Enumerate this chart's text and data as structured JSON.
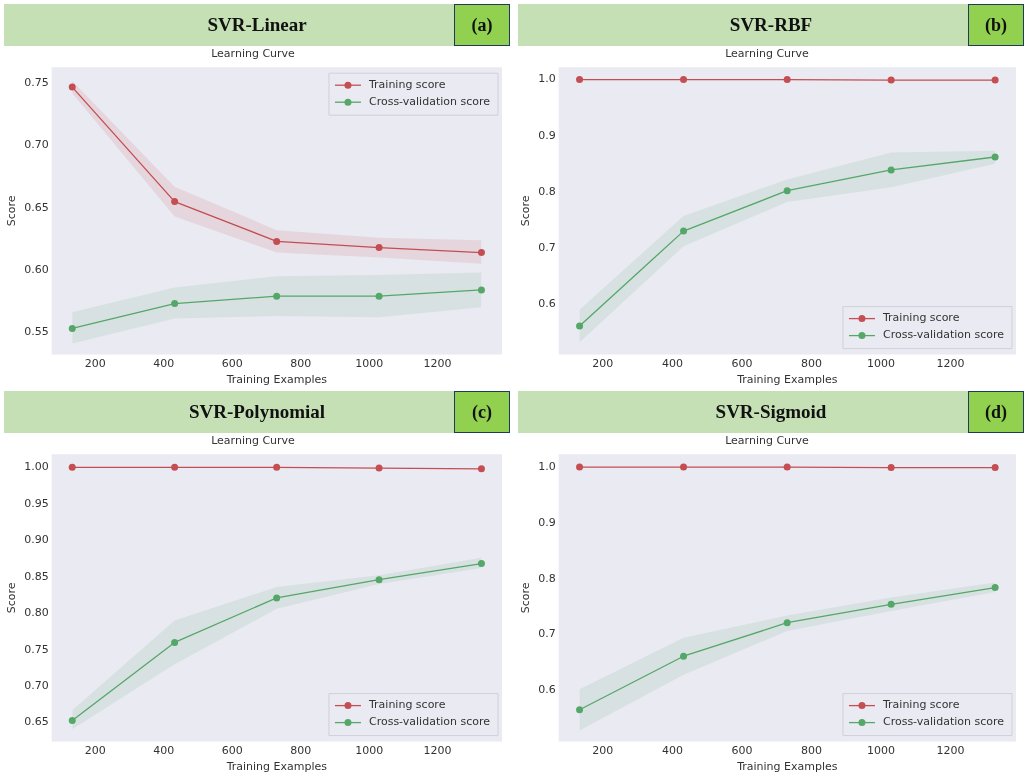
{
  "chart_data": [
    {
      "type": "line",
      "title": "SVR-Linear",
      "subtitle": "Learning Curve",
      "annotations": [
        "(a)"
      ],
      "xlabel": "Training Examples",
      "ylabel": "Score",
      "x": [
        133,
        432,
        730,
        1029,
        1328
      ],
      "xlim": [
        73,
        1388
      ],
      "xticks": [
        200,
        400,
        600,
        800,
        1000,
        1200
      ],
      "ylim": [
        0.532,
        0.763
      ],
      "yticks": [
        {
          "value": 0.55,
          "label": "0.55"
        },
        {
          "value": 0.6,
          "label": "0.60"
        },
        {
          "value": 0.65,
          "label": "0.65"
        },
        {
          "value": 0.7,
          "label": "0.70"
        },
        {
          "value": 0.75,
          "label": "0.75"
        }
      ],
      "grid": false,
      "legend": "top right",
      "marker": "circle",
      "series": [
        {
          "name": "Training score",
          "color": "#c44e52",
          "values": [
            0.747,
            0.655,
            0.623,
            0.618,
            0.614
          ],
          "lower": [
            0.742,
            0.643,
            0.614,
            0.61,
            0.605
          ],
          "upper": [
            0.752,
            0.667,
            0.632,
            0.626,
            0.624
          ]
        },
        {
          "name": "Cross-validation score",
          "color": "#55a868",
          "values": [
            0.553,
            0.573,
            0.579,
            0.579,
            0.584
          ],
          "lower": [
            0.541,
            0.561,
            0.563,
            0.562,
            0.57
          ],
          "upper": [
            0.566,
            0.586,
            0.595,
            0.596,
            0.598
          ]
        }
      ]
    },
    {
      "type": "line",
      "title": "SVR-RBF",
      "subtitle": "Learning Curve",
      "annotations": [
        "(b)"
      ],
      "xlabel": "Training Examples",
      "ylabel": "Score",
      "x": [
        133,
        432,
        730,
        1029,
        1328
      ],
      "xlim": [
        73,
        1388
      ],
      "xticks": [
        200,
        400,
        600,
        800,
        1000,
        1200
      ],
      "ylim": [
        0.51,
        1.022
      ],
      "yticks": [
        0.6,
        0.7,
        0.8,
        0.9,
        {
          "value": 1,
          "label": "1.0"
        }
      ],
      "grid": false,
      "legend": "bottom right",
      "marker": "circle",
      "series": [
        {
          "name": "Training score",
          "color": "#c44e52",
          "values": [
            1,
            1,
            1,
            0.999,
            0.999
          ]
        },
        {
          "name": "Cross-validation score",
          "color": "#55a868",
          "values": [
            0.561,
            0.73,
            0.802,
            0.839,
            0.862
          ],
          "lower": [
            0.532,
            0.703,
            0.782,
            0.808,
            0.85
          ],
          "upper": [
            0.59,
            0.757,
            0.822,
            0.87,
            0.873
          ]
        }
      ]
    },
    {
      "type": "line",
      "title": "SVR-Polynomial",
      "subtitle": "Learning Curve",
      "annotations": [
        "(c)"
      ],
      "xlabel": "Training Examples",
      "ylabel": "Score",
      "x": [
        133,
        432,
        730,
        1029,
        1328
      ],
      "xlim": [
        73,
        1388
      ],
      "xticks": [
        200,
        400,
        600,
        800,
        1000,
        1200
      ],
      "ylim": [
        0.624,
        1.018
      ],
      "yticks": [
        0.65,
        {
          "value": 0.7,
          "label": "0.70"
        },
        0.75,
        {
          "value": 0.8,
          "label": "0.80"
        },
        0.85,
        {
          "value": 0.9,
          "label": "0.90"
        },
        0.95,
        {
          "value": 1,
          "label": "1.00"
        }
      ],
      "grid": false,
      "legend": "bottom right",
      "marker": "circle",
      "series": [
        {
          "name": "Training score",
          "color": "#c44e52",
          "values": [
            1,
            1,
            1,
            0.999,
            0.998
          ]
        },
        {
          "name": "Cross-validation score",
          "color": "#55a868",
          "values": [
            0.653,
            0.76,
            0.821,
            0.846,
            0.868
          ],
          "lower": [
            0.641,
            0.73,
            0.806,
            0.84,
            0.862
          ],
          "upper": [
            0.667,
            0.79,
            0.836,
            0.852,
            0.876
          ]
        }
      ]
    },
    {
      "type": "line",
      "title": "SVR-Sigmoid",
      "subtitle": "Learning Curve",
      "annotations": [
        "(d)"
      ],
      "xlabel": "Training Examples",
      "ylabel": "Score",
      "x": [
        133,
        432,
        730,
        1029,
        1328
      ],
      "xlim": [
        73,
        1388
      ],
      "xticks": [
        200,
        400,
        600,
        800,
        1000,
        1200
      ],
      "ylim": [
        0.508,
        1.023
      ],
      "yticks": [
        0.6,
        0.7,
        0.8,
        0.9,
        {
          "value": 1,
          "label": "1.0"
        }
      ],
      "grid": false,
      "legend": "bottom right",
      "marker": "circle",
      "series": [
        {
          "name": "Training score",
          "color": "#c44e52",
          "values": [
            1,
            1,
            1,
            0.999,
            0.999
          ]
        },
        {
          "name": "Cross-validation score",
          "color": "#55a868",
          "values": [
            0.565,
            0.661,
            0.721,
            0.754,
            0.784
          ],
          "lower": [
            0.528,
            0.628,
            0.706,
            0.742,
            0.776
          ],
          "upper": [
            0.602,
            0.694,
            0.734,
            0.766,
            0.793
          ]
        }
      ]
    }
  ]
}
